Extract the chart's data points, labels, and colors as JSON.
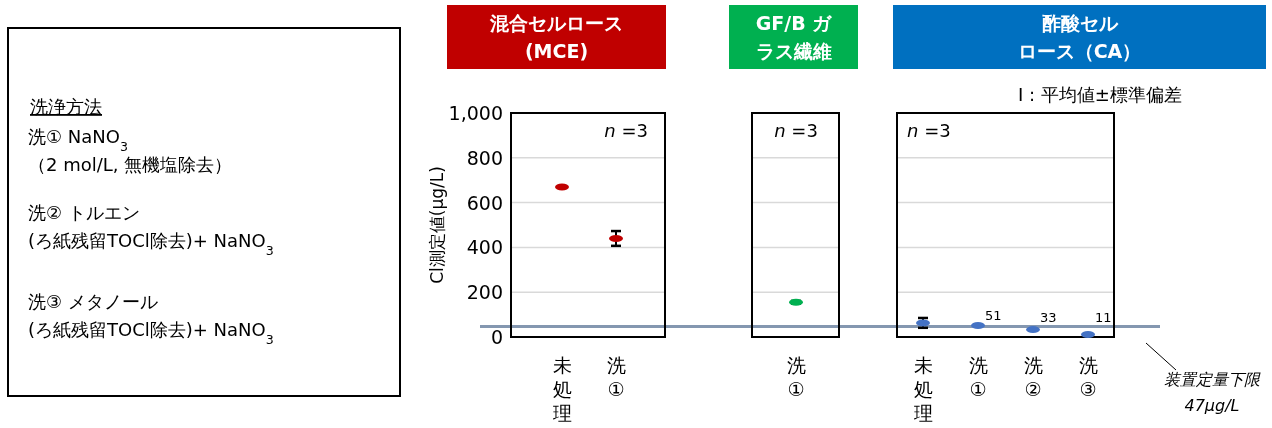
{
  "chart_data": [
    {
      "type": "other",
      "title": "洗浄方法",
      "annotations": [
        "洗① NaNO$_{3}$",
        "（2 mol/L, 無機塩除去）",
        "洗② トルエン",
        "(ろ紙残留TOCl除去)+ NaNO$_{3}$",
        "洗③ メタノール",
        "(ろ紙残留TOCl除去)+ NaNO$_{3}$"
      ]
    },
    {
      "type": "scatter",
      "title": "混合セルロース(MCE)",
      "ylabel": "Cl測定値(μg/L)",
      "categories": [
        "未処理",
        "洗①"
      ],
      "values": [
        670,
        440
      ],
      "errors": [
        3,
        33
      ],
      "color": "#c00000",
      "ylim": [
        0,
        1000
      ],
      "yticks": [
        0,
        200,
        400,
        600,
        800,
        {
          "value": 1000,
          "label": "1,000"
        }
      ],
      "grid": "y",
      "annotations": [
        "*n* =3"
      ],
      "ref_lines": [
        {
          "axis": "y",
          "value": 47,
          "color": "#8497b0"
        }
      ]
    },
    {
      "type": "scatter",
      "title": "GF/B ガラス繊維",
      "categories": [
        "洗①"
      ],
      "values": [
        155
      ],
      "errors": [
        6
      ],
      "color": "#00b050",
      "ylim": [
        0,
        1000
      ],
      "yticks": [
        0,
        200,
        400,
        600,
        800,
        1000
      ],
      "grid": "y",
      "tick_labels": "x",
      "annotations": [
        "*n* =3"
      ],
      "ref_lines": [
        {
          "axis": "y",
          "value": 47,
          "color": "#8497b0"
        }
      ]
    },
    {
      "type": "scatter",
      "title": "酢酸セルロース（CA）",
      "categories": [
        "未処理",
        "洗①",
        "洗②",
        "洗③"
      ],
      "values": [
        63,
        51,
        33,
        11
      ],
      "errors": [
        22,
        null,
        null,
        null
      ],
      "value_labels": [
        null,
        "51",
        "33",
        "11"
      ],
      "color": "#4472c4",
      "ylim": [
        0,
        1000
      ],
      "yticks": [
        0,
        200,
        400,
        600,
        800,
        1000
      ],
      "grid": "y",
      "tick_labels": "x",
      "annotations": [
        "*n* =3",
        "I : 平均値±標準偏差"
      ],
      "ref_lines": [
        {
          "axis": "y",
          "value": 47,
          "color": "#8497b0",
          "label": "装置定量下限 47μg/L"
        }
      ]
    }
  ]
}
